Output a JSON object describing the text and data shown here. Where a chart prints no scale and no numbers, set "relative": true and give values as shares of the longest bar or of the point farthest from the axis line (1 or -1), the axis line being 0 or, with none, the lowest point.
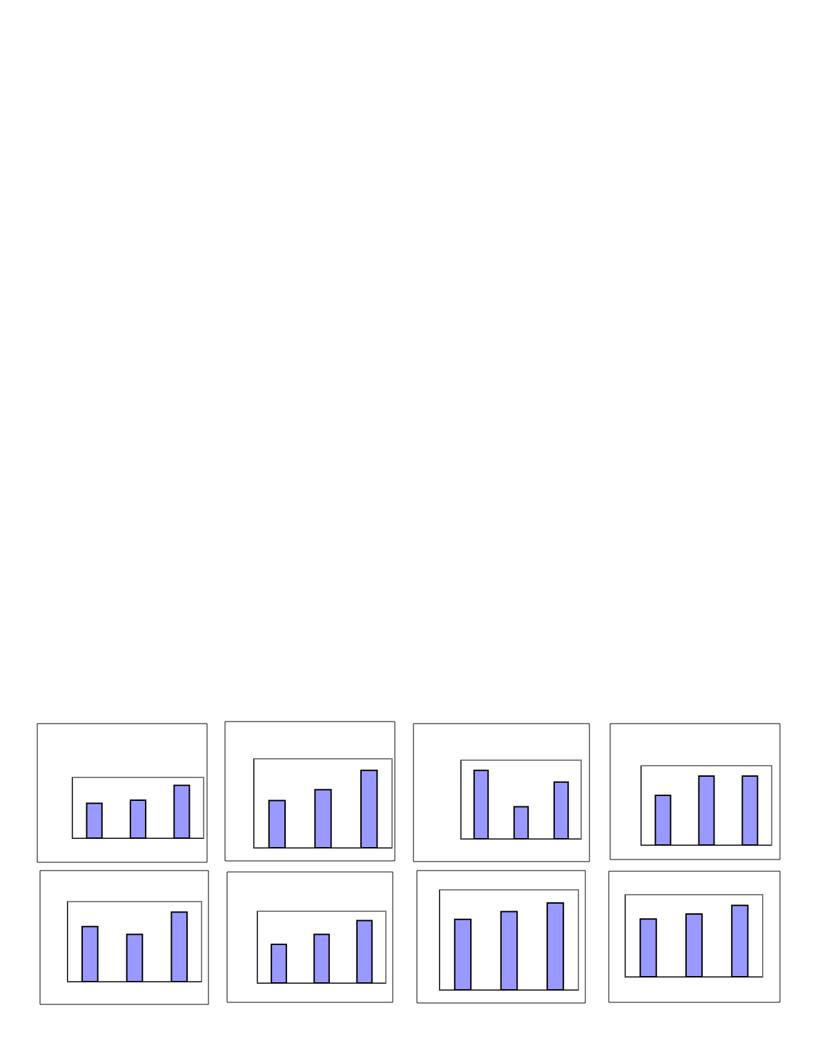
{
  "chart_data": [
    {
      "type": "bar",
      "relative": true,
      "categories": [
        null,
        null,
        null
      ],
      "values": [
        0.66,
        0.72,
        1
      ],
      "color": "#9999ff"
    },
    {
      "type": "bar",
      "relative": true,
      "categories": [
        null,
        null,
        null
      ],
      "values": [
        0.61,
        0.75,
        1
      ],
      "color": "#9999ff"
    },
    {
      "type": "bar",
      "relative": true,
      "categories": [
        null,
        null,
        null
      ],
      "values": [
        1,
        0.47,
        0.83
      ],
      "color": "#9999ff"
    },
    {
      "type": "bar",
      "relative": true,
      "categories": [
        null,
        null,
        null
      ],
      "values": [
        0.72,
        1,
        1
      ],
      "color": "#9999ff"
    },
    {
      "type": "bar",
      "relative": true,
      "categories": [
        null,
        null,
        null
      ],
      "values": [
        0.79,
        0.68,
        1
      ],
      "color": "#9999ff"
    },
    {
      "type": "bar",
      "relative": true,
      "categories": [
        null,
        null,
        null
      ],
      "values": [
        0.62,
        0.78,
        1
      ],
      "color": "#9999ff"
    },
    {
      "type": "bar",
      "relative": true,
      "categories": [
        null,
        null,
        null
      ],
      "values": [
        0.81,
        0.9,
        1
      ],
      "color": "#9999ff"
    },
    {
      "type": "bar",
      "relative": true,
      "categories": [
        null,
        null,
        null
      ],
      "values": [
        0.81,
        0.88,
        1
      ],
      "color": "#9999ff"
    }
  ]
}
